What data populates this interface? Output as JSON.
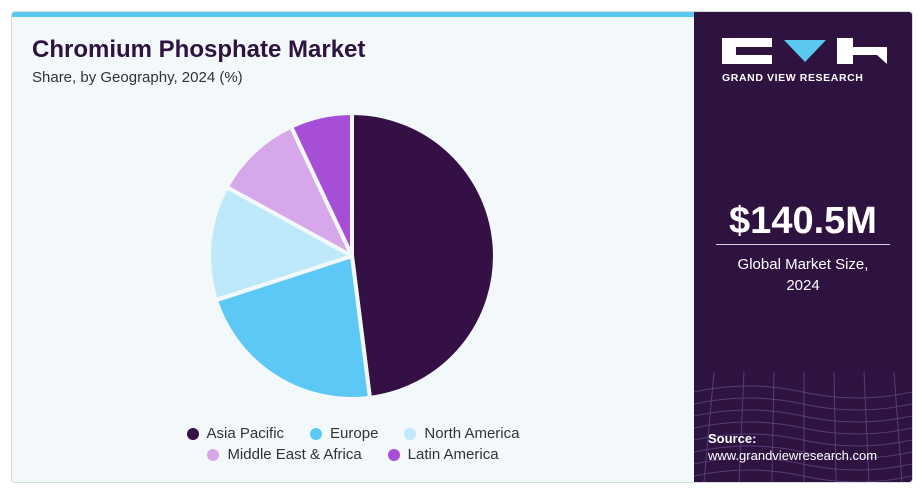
{
  "title": "Chromium Phosphate Market",
  "subtitle": "Share, by Geography, 2024 (%)",
  "chart_data": {
    "type": "pie",
    "title": "Chromium Phosphate Market",
    "subtitle": "Share, by Geography, 2024 (%)",
    "categories": [
      "Asia Pacific",
      "Europe",
      "North America",
      "Middle East & Africa",
      "Latin America"
    ],
    "values": [
      48,
      22,
      13,
      10,
      7
    ],
    "colors": [
      "#341046",
      "#5bc8f5",
      "#bde9fa",
      "#d6a8ea",
      "#a64fd6"
    ],
    "legend_position": "bottom"
  },
  "sidebar": {
    "logo_text": "GRAND VIEW RESEARCH",
    "market_size": "$140.5M",
    "market_size_label_line1": "Global Market Size,",
    "market_size_label_line2": "2024",
    "source_label": "Source:",
    "source_url": "www.grandviewresearch.com"
  }
}
